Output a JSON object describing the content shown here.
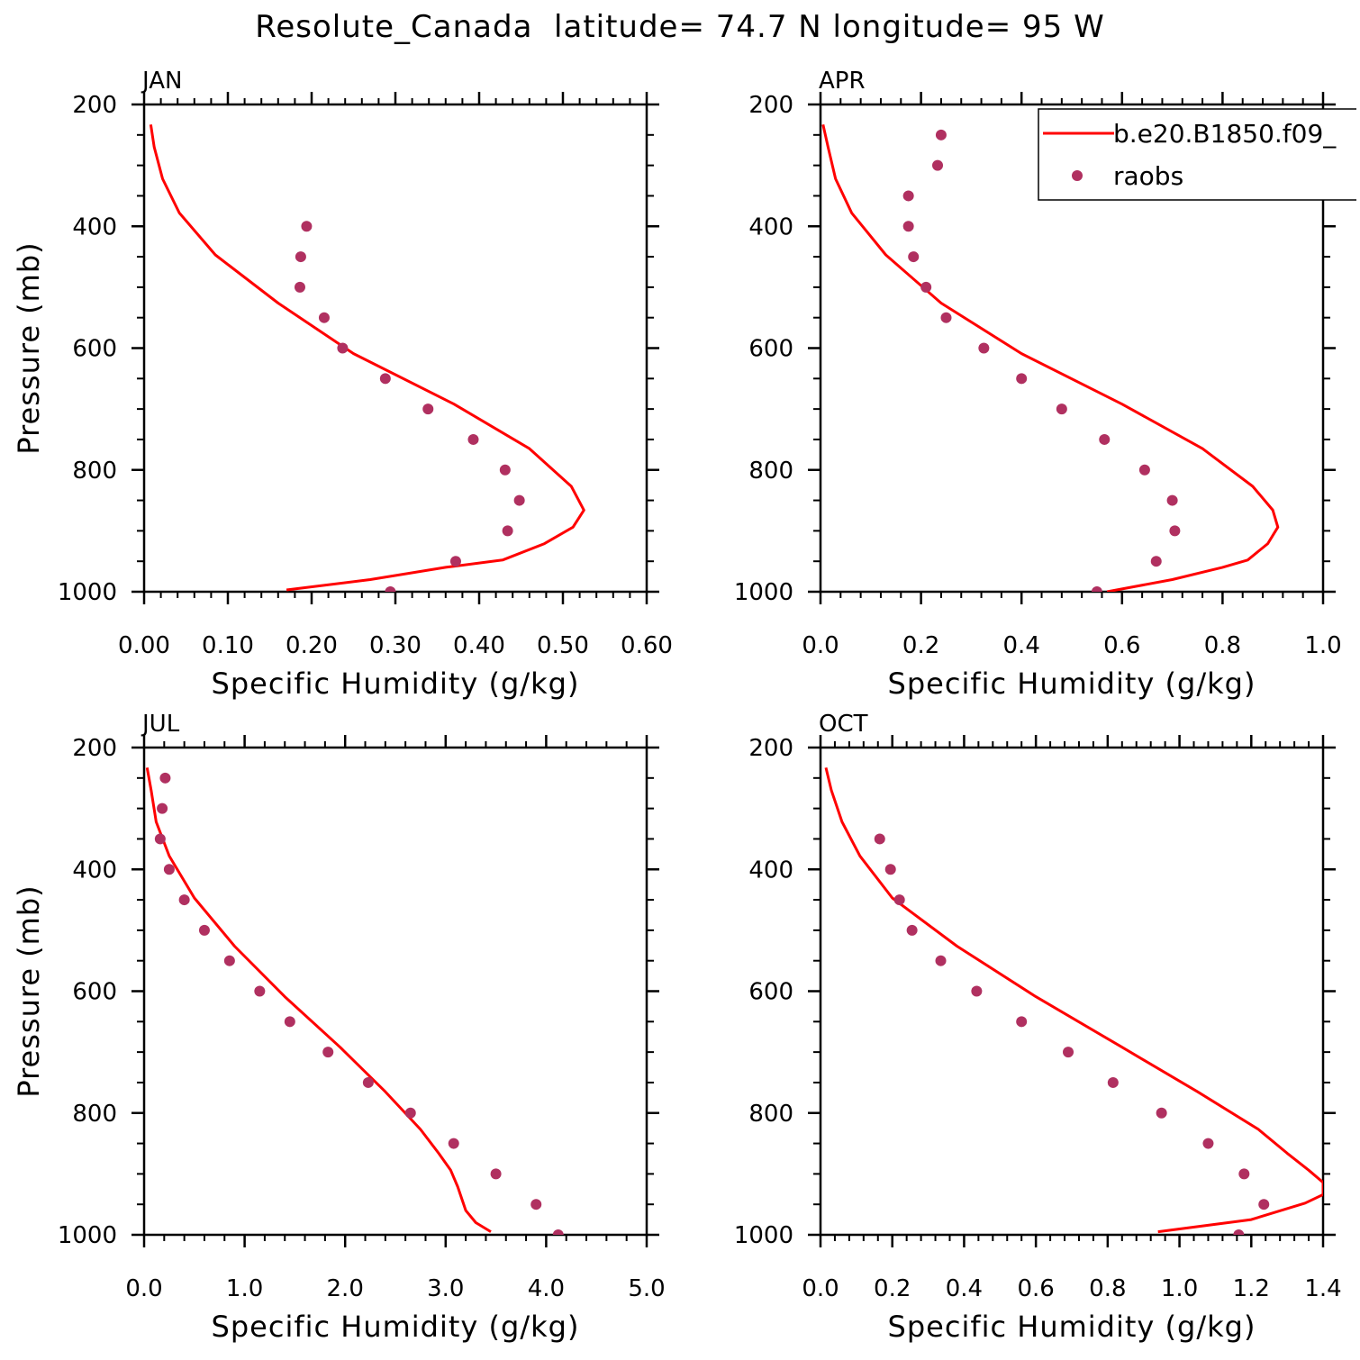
{
  "figure_title": "Resolute_Canada  latitude= 74.7 N longitude= 95 W",
  "legend": {
    "model_label": "b.e20.B1850.f09_",
    "obs_label": "raobs",
    "model_color": "#ff0000",
    "obs_color": "#b03060"
  },
  "chart_data": [
    {
      "type": "line",
      "panel": "JAN",
      "title": "JAN",
      "xlabel": "Specific Humidity (g/kg)",
      "ylabel": "Pressure (mb)",
      "xlim": [
        0,
        0.6
      ],
      "ylim": [
        1000,
        200
      ],
      "x_major_ticks": [
        0,
        0.1,
        0.2,
        0.3,
        0.4,
        0.5,
        0.6
      ],
      "x_tick_labels": [
        "0.00",
        "0.10",
        "0.20",
        "0.30",
        "0.40",
        "0.50",
        "0.60"
      ],
      "y_major_ticks": [
        200,
        400,
        600,
        800,
        1000
      ],
      "y_tick_labels": [
        "200",
        "400",
        "600",
        "800",
        "1000"
      ],
      "series": [
        {
          "name": "b.e20.B1850.f09_",
          "kind": "line",
          "x": [
            0.008,
            0.012,
            0.022,
            0.042,
            0.085,
            0.16,
            0.25,
            0.37,
            0.46,
            0.51,
            0.525,
            0.512,
            0.478,
            0.428,
            0.36,
            0.27,
            0.17
          ],
          "y": [
            233,
            270,
            322,
            378,
            447,
            526,
            609,
            692,
            765,
            827,
            866,
            894,
            921,
            948,
            960,
            980,
            997
          ]
        },
        {
          "name": "raobs",
          "kind": "scatter",
          "x": [
            0.194,
            0.187,
            0.186,
            0.215,
            0.237,
            0.288,
            0.339,
            0.393,
            0.431,
            0.448,
            0.434,
            0.372,
            0.294
          ],
          "y": [
            400,
            450,
            500,
            550,
            600,
            650,
            700,
            750,
            800,
            850,
            900,
            950,
            1000
          ]
        }
      ]
    },
    {
      "type": "line",
      "panel": "APR",
      "title": "APR",
      "xlabel": "Specific Humidity (g/kg)",
      "ylabel": "",
      "xlim": [
        0,
        1.0
      ],
      "ylim": [
        1000,
        200
      ],
      "x_major_ticks": [
        0,
        0.2,
        0.4,
        0.6,
        0.8,
        1.0
      ],
      "x_tick_labels": [
        "0.0",
        "0.2",
        "0.4",
        "0.6",
        "0.8",
        "1.0"
      ],
      "y_major_ticks": [
        200,
        400,
        600,
        800,
        1000
      ],
      "y_tick_labels": [
        "200",
        "400",
        "600",
        "800",
        "1000"
      ],
      "series": [
        {
          "name": "b.e20.B1850.f09_",
          "kind": "line",
          "x": [
            0.005,
            0.015,
            0.03,
            0.062,
            0.13,
            0.24,
            0.4,
            0.6,
            0.76,
            0.86,
            0.9,
            0.91,
            0.89,
            0.85,
            0.8,
            0.7,
            0.57
          ],
          "y": [
            233,
            270,
            322,
            378,
            447,
            526,
            609,
            692,
            765,
            827,
            866,
            894,
            921,
            948,
            960,
            980,
            1000
          ]
        },
        {
          "name": "raobs",
          "kind": "scatter",
          "x": [
            0.24,
            0.233,
            0.175,
            0.175,
            0.185,
            0.21,
            0.25,
            0.325,
            0.4,
            0.48,
            0.565,
            0.645,
            0.7,
            0.705,
            0.668,
            0.55
          ],
          "y": [
            250,
            300,
            350,
            400,
            450,
            500,
            550,
            600,
            650,
            700,
            750,
            800,
            850,
            900,
            950,
            1000
          ]
        }
      ]
    },
    {
      "type": "line",
      "panel": "JUL",
      "title": "JUL",
      "xlabel": "Specific Humidity (g/kg)",
      "ylabel": "Pressure (mb)",
      "xlim": [
        0,
        5.0
      ],
      "ylim": [
        1000,
        200
      ],
      "x_major_ticks": [
        0,
        1,
        2,
        3,
        4,
        5
      ],
      "x_tick_labels": [
        "0.0",
        "1.0",
        "2.0",
        "3.0",
        "4.0",
        "5.0"
      ],
      "y_major_ticks": [
        200,
        400,
        600,
        800,
        1000
      ],
      "y_tick_labels": [
        "200",
        "400",
        "600",
        "800",
        "1000"
      ],
      "series": [
        {
          "name": "b.e20.B1850.f09_",
          "kind": "line",
          "x": [
            0.03,
            0.07,
            0.12,
            0.25,
            0.5,
            0.9,
            1.4,
            1.95,
            2.4,
            2.75,
            2.93,
            3.05,
            3.12,
            3.2,
            3.3,
            3.45
          ],
          "y": [
            233,
            270,
            322,
            378,
            447,
            526,
            609,
            692,
            765,
            827,
            866,
            894,
            921,
            960,
            980,
            995
          ]
        },
        {
          "name": "raobs",
          "kind": "scatter",
          "x": [
            0.21,
            0.18,
            0.16,
            0.25,
            0.4,
            0.6,
            0.85,
            1.15,
            1.45,
            1.83,
            2.23,
            2.65,
            3.08,
            3.5,
            3.9,
            4.12
          ],
          "y": [
            250,
            300,
            350,
            400,
            450,
            500,
            550,
            600,
            650,
            700,
            750,
            800,
            850,
            900,
            950,
            1000
          ]
        }
      ]
    },
    {
      "type": "line",
      "panel": "OCT",
      "title": "OCT",
      "xlabel": "Specific Humidity (g/kg)",
      "ylabel": "",
      "xlim": [
        0,
        1.4
      ],
      "ylim": [
        1000,
        200
      ],
      "x_major_ticks": [
        0,
        0.2,
        0.4,
        0.6,
        0.8,
        1.0,
        1.2,
        1.4
      ],
      "x_tick_labels": [
        "0.0",
        "0.2",
        "0.4",
        "0.6",
        "0.8",
        "1.0",
        "1.2",
        "1.4"
      ],
      "y_major_ticks": [
        200,
        400,
        600,
        800,
        1000
      ],
      "y_tick_labels": [
        "200",
        "400",
        "600",
        "800",
        "1000"
      ],
      "series": [
        {
          "name": "b.e20.B1850.f09_",
          "kind": "line",
          "x": [
            0.015,
            0.03,
            0.06,
            0.11,
            0.2,
            0.38,
            0.6,
            0.84,
            1.05,
            1.22,
            1.3,
            1.36,
            1.4,
            1.4,
            1.35,
            1.2,
            0.94
          ],
          "y": [
            233,
            270,
            322,
            378,
            447,
            526,
            609,
            692,
            765,
            827,
            866,
            894,
            914,
            934,
            948,
            975,
            995
          ]
        },
        {
          "name": "raobs",
          "kind": "scatter",
          "x": [
            0.165,
            0.195,
            0.22,
            0.255,
            0.335,
            0.435,
            0.56,
            0.69,
            0.815,
            0.95,
            1.08,
            1.18,
            1.235,
            1.165
          ],
          "y": [
            350,
            400,
            450,
            500,
            550,
            600,
            650,
            700,
            750,
            800,
            850,
            900,
            950,
            1000
          ]
        }
      ]
    }
  ]
}
